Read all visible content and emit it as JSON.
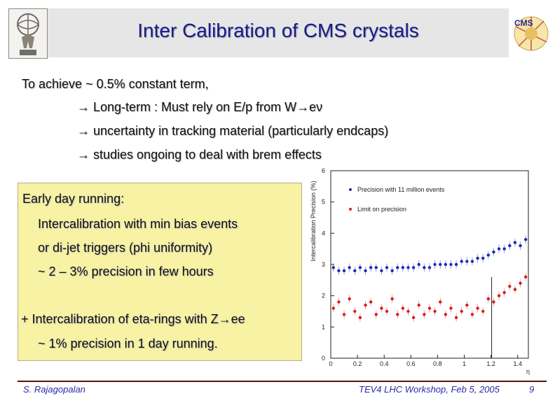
{
  "slide": {
    "title": "Inter Calibration of CMS crystals",
    "intro": "To achieve ~ 0.5% constant term,",
    "arrow_lines": [
      "Long-term : Must rely on E/p from W→eν",
      "uncertainty in tracking material (particularly endcaps)",
      "studies ongoing to deal with brem effects"
    ],
    "box": {
      "heading": "Early day running:",
      "lines": [
        "Intercalibration with min bias events",
        "or di-jet triggers (phi uniformity)",
        "~ 2 – 3% precision in few hours"
      ],
      "z_line": "+ Intercalibration of eta-rings with Z→ee",
      "z_sub": "~ 1% precision in 1 day running."
    },
    "footer": {
      "author": "S. Rajagopalan",
      "event": "TEV4 LHC Workshop, Feb 5, 2005",
      "page": "9"
    },
    "logo_text": "CMS"
  },
  "chart_data": {
    "type": "scatter",
    "title": "",
    "xlabel": "η",
    "ylabel": "Intercalibration Precision (%)",
    "xlim": [
      0,
      1.48
    ],
    "ylim": [
      0,
      6
    ],
    "xticks": [
      "0",
      "0.2",
      "0.4",
      "0.6",
      "0.8",
      "1",
      "1.2",
      "1.4"
    ],
    "yticks": [
      "0",
      "1",
      "2",
      "3",
      "4",
      "5",
      "6"
    ],
    "series": [
      {
        "name": "Precision with 11 million events",
        "color": "#1a2fb0",
        "x": [
          0.02,
          0.06,
          0.1,
          0.14,
          0.18,
          0.22,
          0.26,
          0.3,
          0.34,
          0.38,
          0.42,
          0.46,
          0.5,
          0.54,
          0.58,
          0.62,
          0.66,
          0.7,
          0.74,
          0.78,
          0.82,
          0.86,
          0.9,
          0.94,
          0.98,
          1.02,
          1.06,
          1.1,
          1.14,
          1.18,
          1.22,
          1.26,
          1.3,
          1.34,
          1.38,
          1.42,
          1.46
        ],
        "y": [
          2.9,
          2.8,
          2.8,
          2.9,
          2.8,
          2.9,
          2.8,
          2.9,
          2.9,
          2.8,
          2.9,
          2.8,
          2.9,
          2.9,
          2.9,
          2.9,
          3.0,
          2.9,
          2.9,
          3.0,
          3.0,
          3.0,
          3.0,
          3.0,
          3.1,
          3.1,
          3.1,
          3.2,
          3.2,
          3.3,
          3.4,
          3.5,
          3.5,
          3.6,
          3.7,
          3.6,
          3.8
        ]
      },
      {
        "name": "Limit on precision",
        "color": "#d42020",
        "x": [
          0.02,
          0.06,
          0.1,
          0.14,
          0.18,
          0.22,
          0.26,
          0.3,
          0.34,
          0.38,
          0.42,
          0.46,
          0.5,
          0.54,
          0.58,
          0.62,
          0.66,
          0.7,
          0.74,
          0.78,
          0.82,
          0.86,
          0.9,
          0.94,
          0.98,
          1.02,
          1.06,
          1.1,
          1.14,
          1.18,
          1.22,
          1.26,
          1.3,
          1.34,
          1.38,
          1.42,
          1.46
        ],
        "y": [
          1.6,
          1.8,
          1.4,
          1.9,
          1.5,
          1.3,
          1.7,
          1.8,
          1.4,
          1.6,
          1.5,
          1.9,
          1.4,
          1.6,
          1.5,
          1.3,
          1.7,
          1.4,
          1.6,
          1.5,
          1.8,
          1.4,
          1.6,
          1.3,
          1.5,
          1.7,
          1.4,
          1.6,
          1.5,
          1.9,
          1.8,
          2.0,
          2.1,
          2.3,
          2.2,
          2.4,
          2.6
        ]
      }
    ]
  }
}
